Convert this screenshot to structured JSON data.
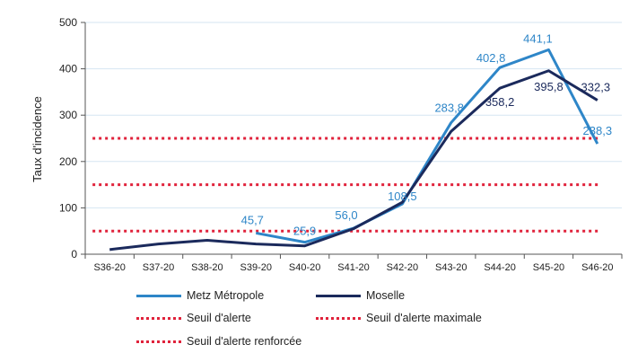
{
  "chart_data": {
    "type": "line",
    "categories": [
      "S36-20",
      "S37-20",
      "S38-20",
      "S39-20",
      "S40-20",
      "S41-20",
      "S42-20",
      "S43-20",
      "S44-20",
      "S45-20",
      "S46-20"
    ],
    "ylabel": "Taux d'incidence",
    "ylim": [
      0,
      500
    ],
    "yticks": [
      "0",
      "100",
      "200",
      "300",
      "400",
      "500"
    ],
    "grid": true,
    "legend_position": "bottom",
    "series": [
      {
        "name": "Metz Métropole",
        "color": "#2E86C8",
        "style": "solid",
        "values": [
          null,
          null,
          null,
          45.7,
          25.9,
          56.0,
          108.5,
          283.8,
          402.8,
          441.1,
          238.3
        ],
        "labels": [
          null,
          null,
          null,
          "45,7",
          "25,9",
          "56,0",
          "108,5",
          "283,8",
          "402,8",
          "441,1",
          "238,3"
        ]
      },
      {
        "name": "Moselle",
        "color": "#1B2A5C",
        "style": "solid",
        "values": [
          10,
          22,
          30,
          22,
          18,
          55,
          112,
          265,
          358.2,
          395.8,
          332.3
        ],
        "labels": [
          null,
          null,
          null,
          null,
          null,
          null,
          null,
          null,
          "358,2",
          "395,8",
          "332,3"
        ]
      },
      {
        "name": "Seuil d'alerte",
        "color": "#E0223B",
        "style": "dotted",
        "constant": 50
      },
      {
        "name": "Seuil d'alerte maximale",
        "color": "#E0223B",
        "style": "dotted",
        "constant": 250
      },
      {
        "name": "Seuil d'alerte renforcée",
        "color": "#E0223B",
        "style": "dotted",
        "constant": 150
      }
    ]
  }
}
